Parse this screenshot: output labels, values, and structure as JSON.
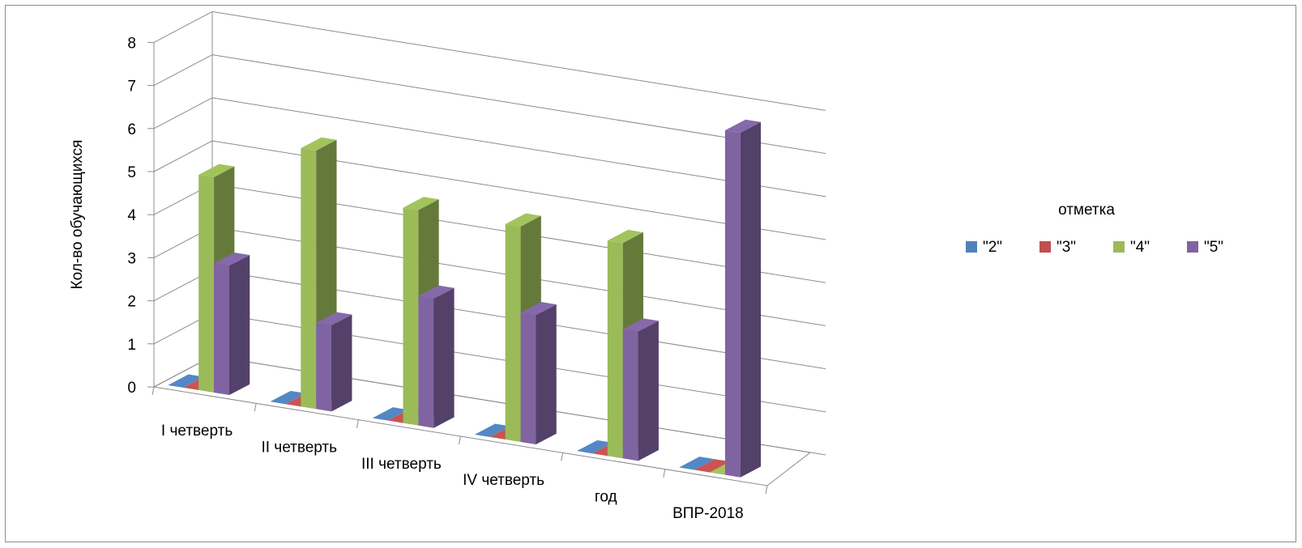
{
  "chart_data": {
    "type": "bar",
    "style": "3d-clustered-column",
    "categories": [
      "I четверть",
      "II четверть",
      "III четверть",
      "IV четверть",
      "год",
      "ВПР-2018"
    ],
    "series": [
      {
        "name": "\"2\"",
        "color": "#4f81bd",
        "values": [
          0,
          0,
          0,
          0,
          0,
          0
        ]
      },
      {
        "name": "\"3\"",
        "color": "#c0504d",
        "values": [
          0,
          0,
          0,
          0,
          0,
          0
        ]
      },
      {
        "name": "\"4\"",
        "color": "#9bbb59",
        "values": [
          5,
          6,
          5,
          5,
          5,
          0
        ]
      },
      {
        "name": "\"5\"",
        "color": "#8064a2",
        "values": [
          3,
          2,
          3,
          3,
          3,
          8
        ]
      }
    ],
    "ylabel": "Кол-во обучающихся",
    "y_ticks": [
      "0",
      "1",
      "2",
      "3",
      "4",
      "5",
      "6",
      "7",
      "8"
    ],
    "ylim": [
      0,
      8
    ],
    "grid": true,
    "legend": {
      "title": "отметка",
      "position": "right"
    }
  }
}
